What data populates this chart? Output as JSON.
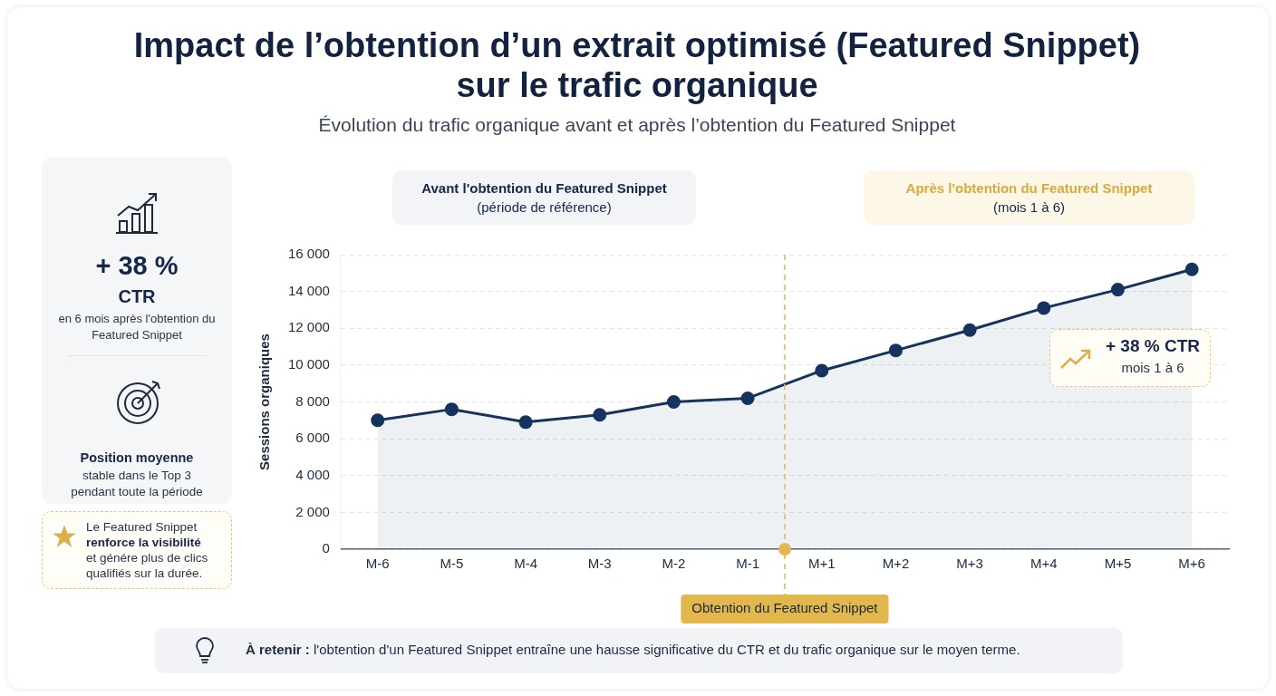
{
  "chart_data": {
    "type": "area",
    "title": "Impact de l’obtention d’un extrait optimisé (Featured Snippet) sur le trafic organique",
    "subtitle": "Évolution du trafic organique avant et après l’obtention du Featured Snippet",
    "ylabel": "Sessions organiques",
    "categories": [
      "M-6",
      "M-5",
      "M-4",
      "M-3",
      "M-2",
      "M-1",
      "M+1",
      "M+2",
      "M+3",
      "M+4",
      "M+5",
      "M+6"
    ],
    "series": [
      {
        "color": "#15335e",
        "values": [
          7000,
          7600,
          6900,
          7300,
          8000,
          8200,
          9700,
          10800,
          11900,
          13100,
          14100,
          15200
        ]
      }
    ],
    "ylim": [
      0,
      16000
    ],
    "yticks": [
      0,
      {
        "value": 2000,
        "label": "2 000"
      },
      {
        "value": 4000,
        "label": "4 000"
      },
      {
        "value": 6000,
        "label": "6 000"
      },
      {
        "value": 8000,
        "label": "8 000"
      },
      {
        "value": 10000,
        "label": "10 000"
      },
      {
        "value": 12000,
        "label": "12 000"
      },
      {
        "value": 14000,
        "label": "14 000"
      },
      {
        "value": 16000,
        "label": "16 000"
      }
    ],
    "grid": "y",
    "marker": "circle",
    "line_style": "solid",
    "legend": false,
    "ref_lines": [
      {
        "axis": "x",
        "value": "M-1",
        "label": "Obtention du Featured Snippet",
        "color": "#e2b84e",
        "line_style": "dashed"
      }
    ],
    "annotations": [
      "Avant l'obtention du Featured Snippet",
      "(période de référence)",
      "Après l'obtention du Featured Snippet",
      "(mois 1 à 6)",
      "+ 38 % CTR",
      "mois 1 à 6",
      "+ 38 %",
      "CTR",
      "en 6 mois après l'obtention du Featured Snippet",
      "Position moyenne",
      "stable dans le Top 3 pendant toute la période",
      "Le Featured Snippet",
      "renforce la visibilité",
      "et génére plus de clics qualifiés sur la durée.",
      "À retenir :",
      "l'obtention d'un Featured Snippet entraîne une hausse significative du CTR et du trafic organique sur le moyen terme."
    ]
  }
}
